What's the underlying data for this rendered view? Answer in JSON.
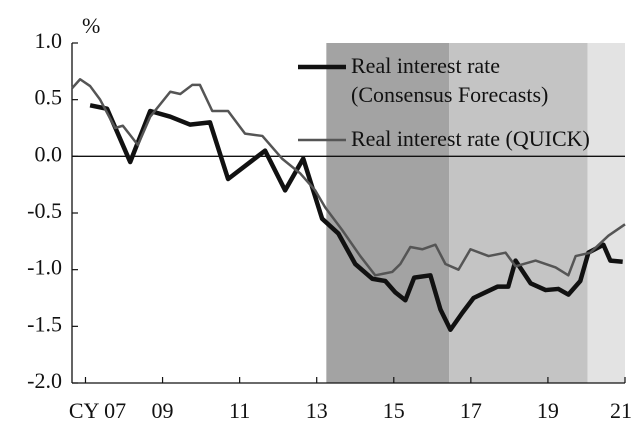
{
  "chart_data": {
    "type": "line",
    "unit_label": "%",
    "xlim": [
      2006.65,
      2021.0
    ],
    "xticks": [
      {
        "value": 2007,
        "label": "CY 07"
      },
      {
        "value": 2009,
        "label": "09"
      },
      {
        "value": 2011,
        "label": "11"
      },
      {
        "value": 2013,
        "label": "13"
      },
      {
        "value": 2015,
        "label": "15"
      },
      {
        "value": 2017,
        "label": "17"
      },
      {
        "value": 2019,
        "label": "19"
      },
      {
        "value": 2021,
        "label": "21"
      }
    ],
    "ylim": [
      -2.0,
      1.0
    ],
    "yticks": [
      {
        "value": 1.0,
        "label": "1.0"
      },
      0.5,
      {
        "value": 0.0,
        "label": "0.0"
      },
      -0.5,
      {
        "value": -1.0,
        "label": "-1.0"
      },
      -1.5,
      {
        "value": -2.0,
        "label": "-2.0"
      }
    ],
    "shaded_regions": [
      {
        "start": 2013.25,
        "end": 2016.44,
        "color": "#a3a3a3"
      },
      {
        "start": 2016.44,
        "end": 2020.03,
        "color": "#c4c4c4"
      },
      {
        "start": 2020.03,
        "end": 2021.0,
        "color": "#e3e3e3"
      }
    ],
    "series": [
      {
        "name": "Real interest rate (Consensus Forecasts)",
        "color": "#111111",
        "x": [
          2007.12,
          2007.56,
          2008.16,
          2008.68,
          2009.2,
          2009.71,
          2010.23,
          2010.7,
          2011.66,
          2012.18,
          2012.65,
          2013.14,
          2013.56,
          2014.0,
          2014.44,
          2014.78,
          2015.04,
          2015.3,
          2015.53,
          2015.95,
          2016.21,
          2016.47,
          2016.78,
          2017.07,
          2017.38,
          2017.69,
          2017.97,
          2018.16,
          2018.55,
          2018.94,
          2019.27,
          2019.53,
          2019.84,
          2020.05,
          2020.44,
          2020.62,
          2020.94
        ],
        "values": [
          0.45,
          0.42,
          -0.05,
          0.4,
          0.35,
          0.28,
          0.3,
          -0.2,
          0.05,
          -0.3,
          -0.02,
          -0.55,
          -0.68,
          -0.95,
          -1.08,
          -1.1,
          -1.2,
          -1.27,
          -1.07,
          -1.05,
          -1.35,
          -1.53,
          -1.38,
          -1.25,
          -1.2,
          -1.15,
          -1.15,
          -0.92,
          -1.12,
          -1.18,
          -1.17,
          -1.22,
          -1.1,
          -0.85,
          -0.78,
          -0.92,
          -0.93
        ]
      },
      {
        "name": "Real interest rate (QUICK)",
        "color": "#555555",
        "x": [
          2006.65,
          2006.86,
          2007.12,
          2007.38,
          2007.77,
          2007.97,
          2008.36,
          2008.68,
          2009.2,
          2009.46,
          2009.77,
          2009.97,
          2010.29,
          2010.7,
          2011.14,
          2011.59,
          2012.1,
          2012.57,
          2012.96,
          2013.22,
          2013.66,
          2014.13,
          2014.52,
          2014.96,
          2015.17,
          2015.43,
          2015.74,
          2016.08,
          2016.34,
          2016.68,
          2016.99,
          2017.46,
          2017.9,
          2018.16,
          2018.68,
          2019.2,
          2019.53,
          2019.72,
          2020.1,
          2020.57,
          2021.0
        ],
        "values": [
          0.6,
          0.68,
          0.62,
          0.5,
          0.25,
          0.27,
          0.1,
          0.35,
          0.57,
          0.55,
          0.63,
          0.63,
          0.4,
          0.4,
          0.2,
          0.18,
          -0.02,
          -0.15,
          -0.3,
          -0.45,
          -0.65,
          -0.88,
          -1.05,
          -1.02,
          -0.95,
          -0.8,
          -0.82,
          -0.78,
          -0.95,
          -1.0,
          -0.82,
          -0.88,
          -0.85,
          -0.97,
          -0.92,
          -0.98,
          -1.05,
          -0.88,
          -0.85,
          -0.7,
          -0.6
        ]
      }
    ]
  }
}
